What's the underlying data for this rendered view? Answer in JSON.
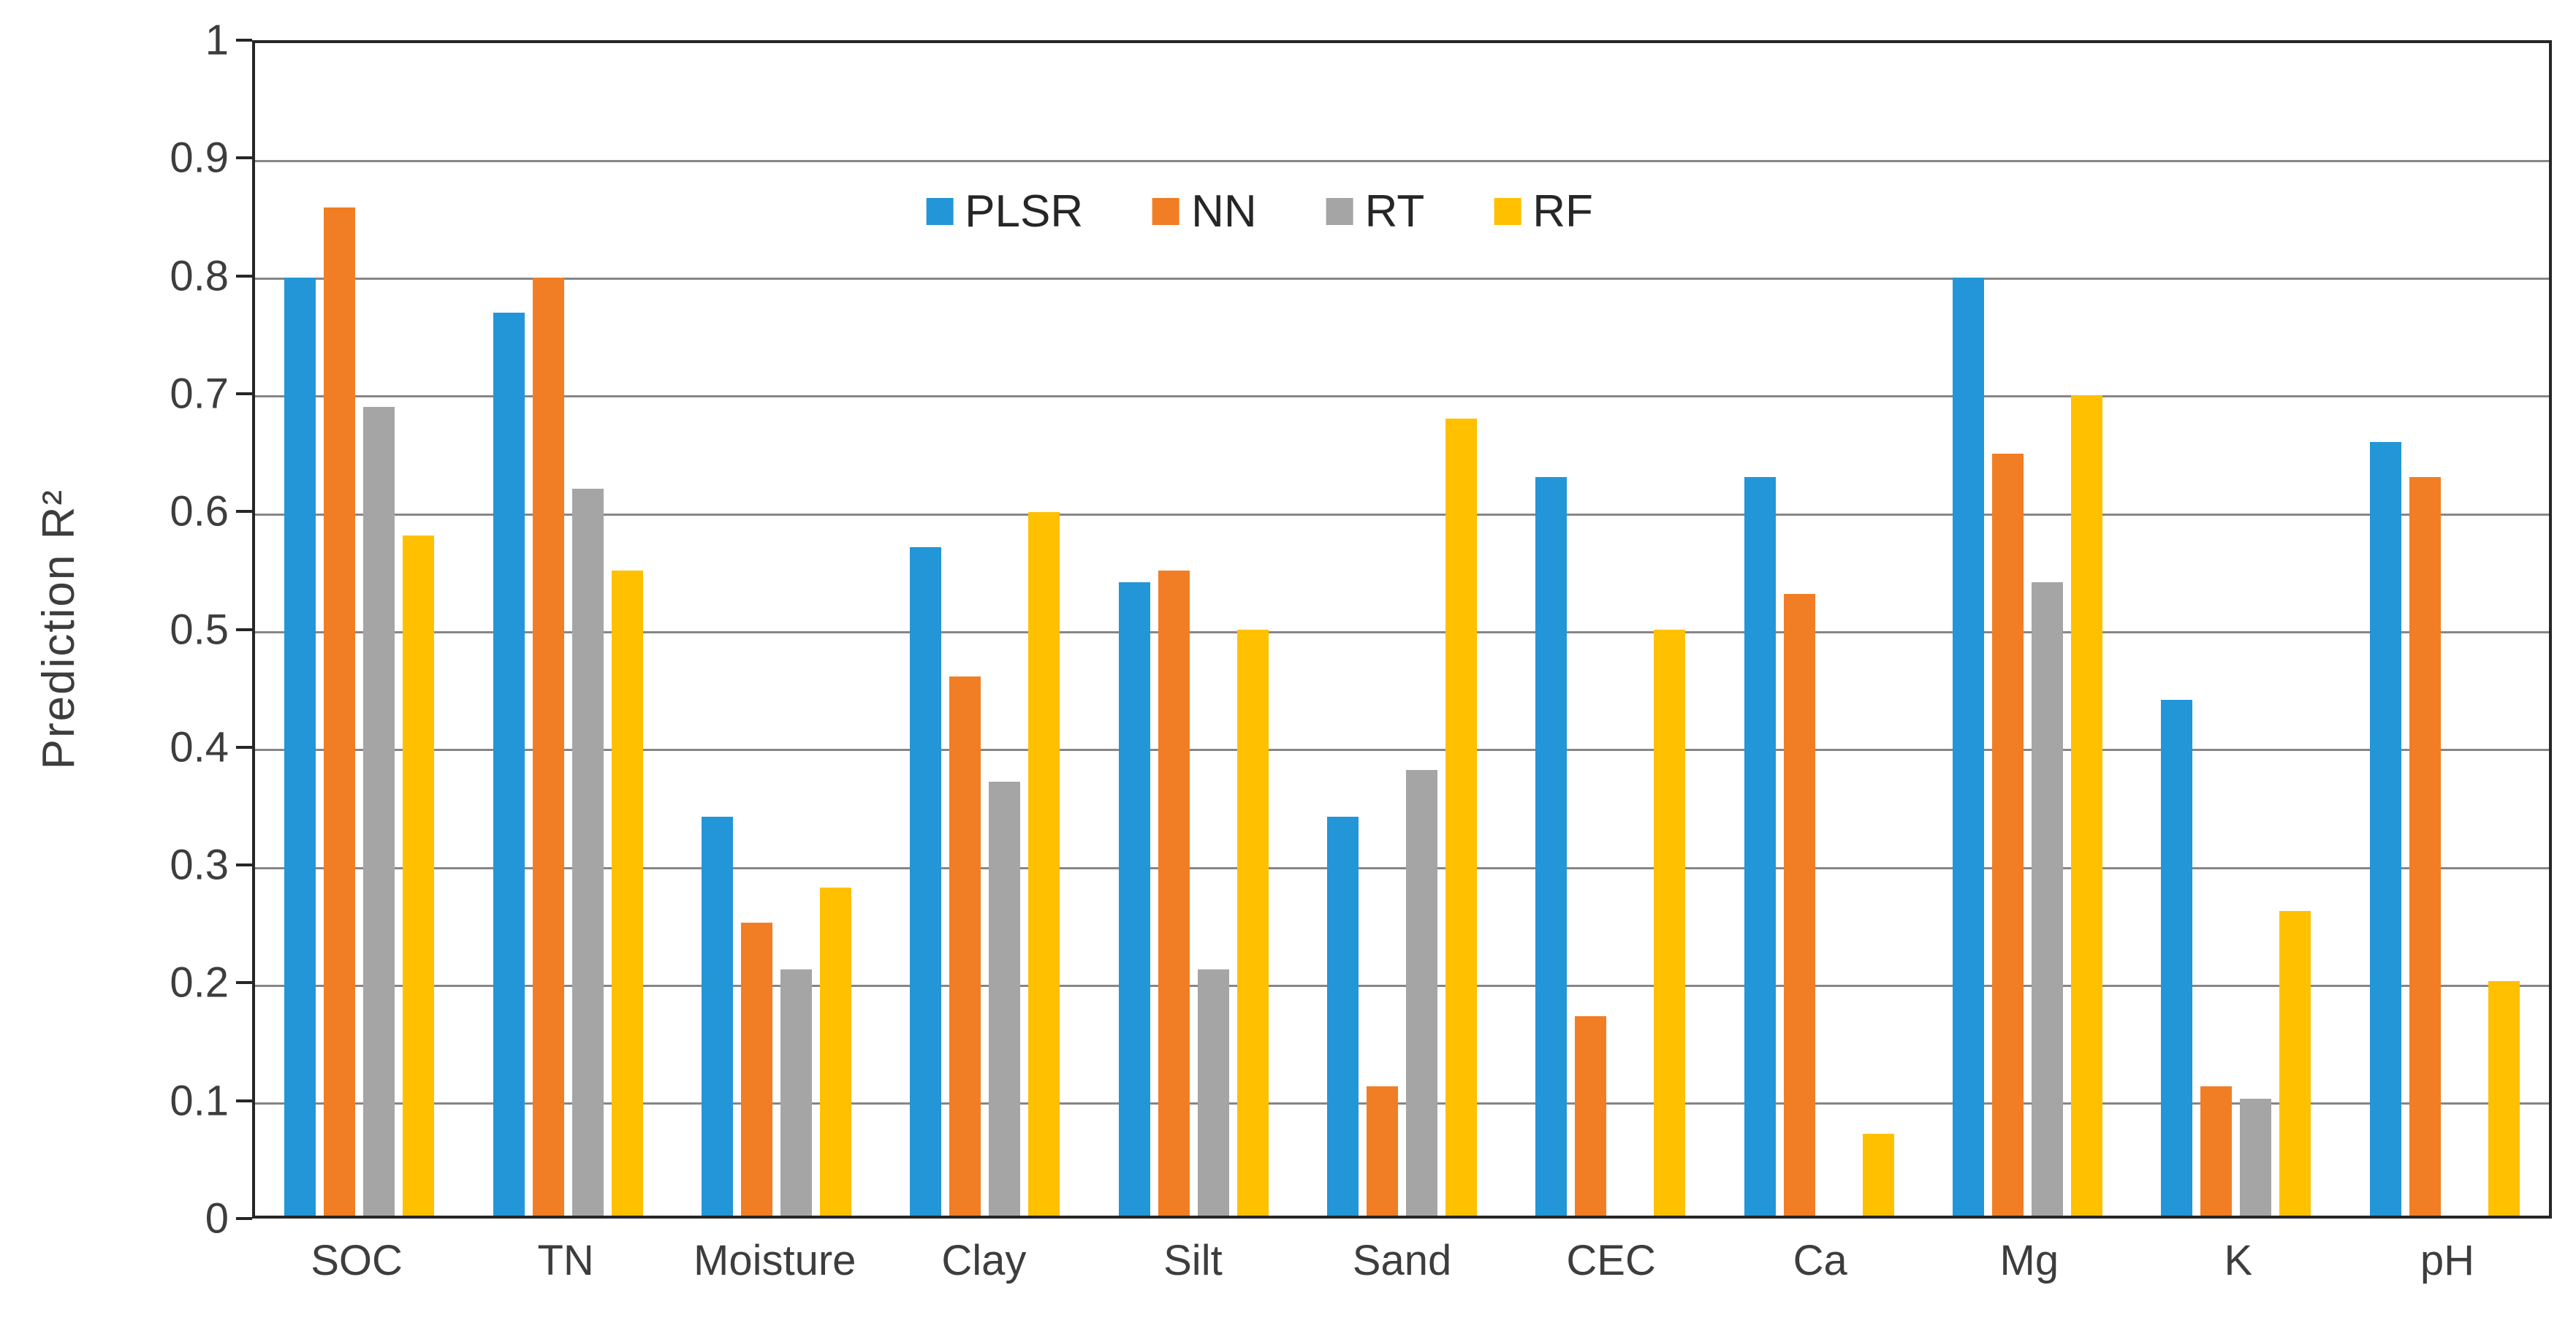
{
  "chart_data": {
    "type": "bar",
    "title": "",
    "ylabel": "Prediction R²",
    "xlabel": "",
    "ylim": [
      0,
      1
    ],
    "ytick_step": 0.1,
    "ytick_labels": [
      "0",
      "0.1",
      "0.2",
      "0.3",
      "0.4",
      "0.5",
      "0.6",
      "0.7",
      "0.8",
      "0.9",
      "1"
    ],
    "grid": true,
    "legend_position": "top-center-inside",
    "categories": [
      "SOC",
      "TN",
      "Moisture",
      "Clay",
      "Silt",
      "Sand",
      "CEC",
      "Ca",
      "Mg",
      "K",
      "pH"
    ],
    "series": [
      {
        "name": "PLSR",
        "color": "#2396D7",
        "values": [
          0.8,
          0.77,
          0.34,
          0.57,
          0.54,
          0.34,
          0.63,
          0.63,
          0.8,
          0.44,
          0.66
        ]
      },
      {
        "name": "NN",
        "color": "#F17E24",
        "values": [
          0.86,
          0.8,
          0.25,
          0.46,
          0.55,
          0.11,
          0.17,
          0.53,
          0.65,
          0.11,
          0.63
        ]
      },
      {
        "name": "RT",
        "color": "#A5A5A5",
        "values": [
          0.69,
          0.62,
          0.21,
          0.37,
          0.21,
          0.38,
          0.0,
          0.0,
          0.54,
          0.1,
          0.0
        ]
      },
      {
        "name": "RF",
        "color": "#FFC000",
        "values": [
          0.58,
          0.55,
          0.28,
          0.6,
          0.5,
          0.68,
          0.5,
          0.07,
          0.7,
          0.26,
          0.2
        ]
      }
    ]
  },
  "colors": {
    "plot_border": "#262626",
    "gridline": "#868686",
    "text": "#3d3d3d",
    "background": "#ffffff"
  }
}
